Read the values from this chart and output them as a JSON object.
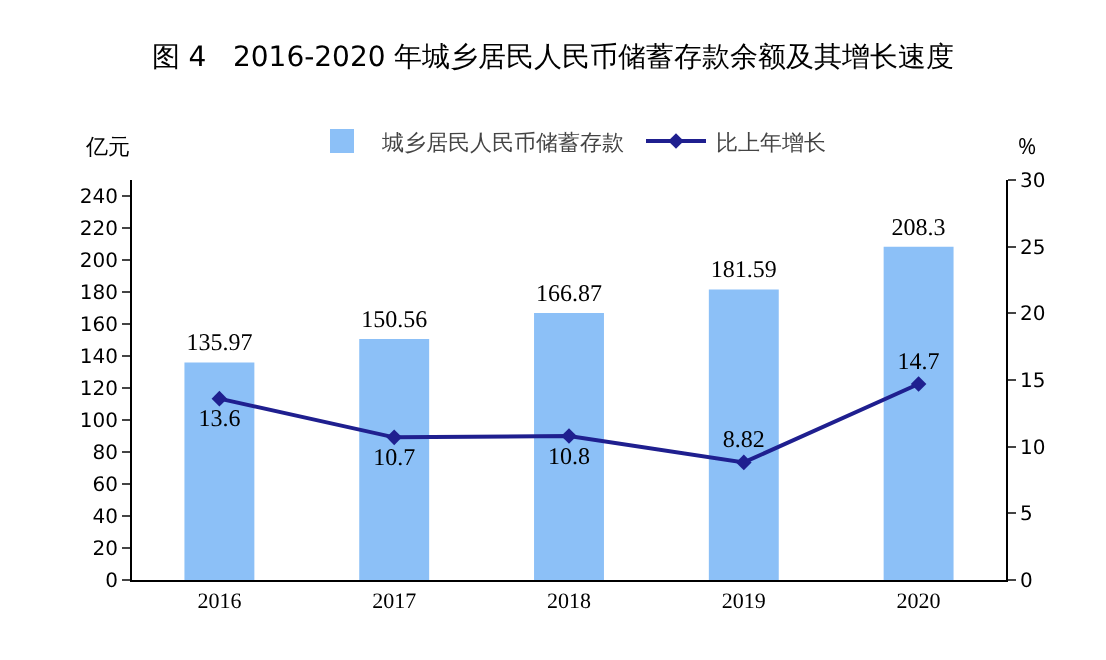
{
  "chart_data": {
    "type": "bar",
    "title": "图 4   2016-2020 年城乡居民人民币储蓄存款余额及其增长速度",
    "ylabel": "亿元",
    "y2label": "%",
    "categories": [
      "2016",
      "2017",
      "2018",
      "2019",
      "2020"
    ],
    "series": [
      {
        "name": "城乡居民人民币储蓄存款",
        "color": "#8cc0f7",
        "values": [
          135.97,
          150.56,
          166.87,
          181.59,
          208.3
        ]
      },
      {
        "name": "比上年增长",
        "type": "line",
        "axis": "y2",
        "color": "#1f1f8f",
        "marker": "diamond",
        "values": [
          13.6,
          10.7,
          10.8,
          8.82,
          14.7
        ]
      }
    ],
    "ylim": [
      0,
      250
    ],
    "yticks": [
      0,
      20,
      40,
      60,
      80,
      100,
      120,
      140,
      160,
      180,
      200,
      220,
      240
    ],
    "y2lim": [
      0,
      30
    ],
    "y2ticks": [
      0,
      5,
      10,
      15,
      20,
      25,
      30
    ],
    "data_labels": true,
    "grid": false,
    "legend": "top"
  }
}
